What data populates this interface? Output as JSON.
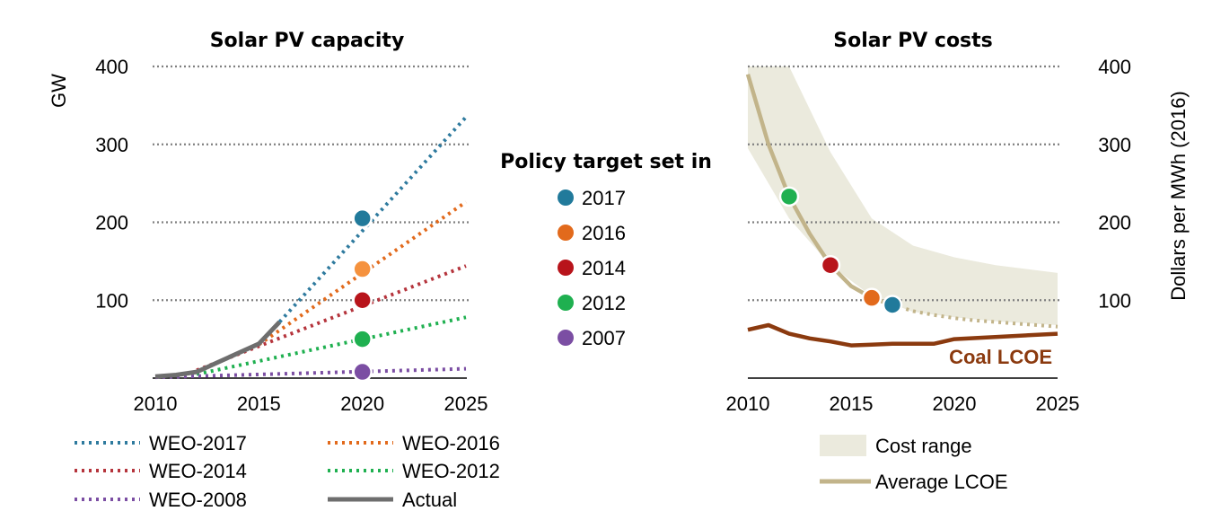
{
  "chart_data": [
    {
      "type": "line",
      "title": "Solar PV capacity",
      "xlabel": "",
      "ylabel": "GW",
      "xlim": [
        2010,
        2025
      ],
      "ylim": [
        0,
        400
      ],
      "x_ticks": [
        "2010",
        "2015",
        "2020",
        "2025"
      ],
      "y_ticks": [
        "100",
        "200",
        "300",
        "400"
      ],
      "grid": true,
      "legend_placement": "bottom",
      "series": [
        {
          "name": "WEO-2017",
          "color": "#2e7a9e",
          "style": "dotted",
          "x": [
            2016,
            2025
          ],
          "y": [
            72,
            335
          ]
        },
        {
          "name": "WEO-2016",
          "color": "#e26a1c",
          "style": "dotted",
          "x": [
            2015,
            2025
          ],
          "y": [
            43,
            226
          ]
        },
        {
          "name": "WEO-2014",
          "color": "#b5343c",
          "style": "dotted",
          "x": [
            2012,
            2025
          ],
          "y": [
            10,
            144
          ]
        },
        {
          "name": "WEO-2012",
          "color": "#1fb050",
          "style": "dotted",
          "x": [
            2012,
            2025
          ],
          "y": [
            5,
            78
          ]
        },
        {
          "name": "WEO-2008",
          "color": "#7b4ea3",
          "style": "dotted",
          "x": [
            2010,
            2025
          ],
          "y": [
            1,
            12
          ]
        },
        {
          "name": "Actual",
          "color": "#6e6e6e",
          "style": "solid",
          "x": [
            2010,
            2011,
            2012,
            2013,
            2014,
            2015,
            2016
          ],
          "y": [
            2,
            4,
            8,
            20,
            32,
            44,
            72
          ]
        }
      ],
      "policy_targets": [
        {
          "year_set": "2017",
          "x": 2020,
          "y": 205,
          "color": "#217a9b"
        },
        {
          "year_set": "2016",
          "x": 2020,
          "y": 140,
          "color": "#f5923e"
        },
        {
          "year_set": "2014",
          "x": 2020,
          "y": 100,
          "color": "#b8141b"
        },
        {
          "year_set": "2012",
          "x": 2020,
          "y": 50,
          "color": "#1fb050"
        },
        {
          "year_set": "2007",
          "x": 2020,
          "y": 8,
          "color": "#7b4ea3"
        }
      ]
    },
    {
      "type": "line",
      "title": "Solar PV costs",
      "xlabel": "",
      "ylabel": "Dollars per MWh (2016)",
      "xlim": [
        2010,
        2025
      ],
      "ylim": [
        0,
        400
      ],
      "x_ticks": [
        "2010",
        "2015",
        "2020",
        "2025"
      ],
      "y_ticks": [
        "100",
        "200",
        "300",
        "400"
      ],
      "grid": true,
      "y_axis_side": "right",
      "legend_placement": "bottom",
      "cost_range": {
        "name": "Cost range",
        "color": "#ebeadd",
        "x": [
          2010,
          2012,
          2014,
          2016,
          2018,
          2020,
          2022,
          2025
        ],
        "y_low": [
          295,
          205,
          145,
          105,
          85,
          78,
          73,
          68
        ],
        "y_high": [
          400,
          400,
          290,
          205,
          170,
          155,
          145,
          135
        ]
      },
      "series": [
        {
          "name": "Average LCOE",
          "color": "#c2b48a",
          "style": "solid",
          "x": [
            2010,
            2011,
            2012,
            2013,
            2014,
            2015,
            2016,
            2017
          ],
          "y": [
            390,
            300,
            233,
            185,
            145,
            118,
            103,
            94
          ]
        },
        {
          "name": "Average LCOE",
          "color": "#c2b48a",
          "style": "dotted",
          "x": [
            2017,
            2018,
            2019,
            2020,
            2021,
            2022,
            2023,
            2024,
            2025
          ],
          "y": [
            94,
            86,
            81,
            77,
            74,
            72,
            70,
            68,
            66
          ]
        },
        {
          "name": "Coal LCOE",
          "color": "#8b3a0f",
          "style": "solid",
          "x": [
            2010,
            2011,
            2012,
            2013,
            2014,
            2015,
            2016,
            2017,
            2018,
            2019,
            2020,
            2025
          ],
          "y": [
            62,
            68,
            57,
            51,
            47,
            42,
            43,
            44,
            44,
            44,
            50,
            57
          ]
        }
      ],
      "policy_targets": [
        {
          "year_set": "2017",
          "x": 2017,
          "y": 94,
          "color": "#217a9b"
        },
        {
          "year_set": "2016",
          "x": 2016,
          "y": 103,
          "color": "#e26a1c"
        },
        {
          "year_set": "2014",
          "x": 2014,
          "y": 145,
          "color": "#b8141b"
        },
        {
          "year_set": "2012",
          "x": 2012,
          "y": 233,
          "color": "#1fb050"
        }
      ],
      "annotations": [
        "Coal LCOE"
      ]
    }
  ],
  "policy_legend": {
    "title": "Policy target set in",
    "items": [
      {
        "label": "2017",
        "color": "#217a9b"
      },
      {
        "label": "2016",
        "color": "#e26a1c"
      },
      {
        "label": "2014",
        "color": "#b8141b"
      },
      {
        "label": "2012",
        "color": "#1fb050"
      },
      {
        "label": "2007",
        "color": "#7b4ea3"
      }
    ]
  },
  "left_legend": [
    {
      "label": "WEO-2017",
      "color": "#2e7a9e",
      "style": "dotted"
    },
    {
      "label": "WEO-2016",
      "color": "#e26a1c",
      "style": "dotted"
    },
    {
      "label": "WEO-2014",
      "color": "#b5343c",
      "style": "dotted"
    },
    {
      "label": "WEO-2012",
      "color": "#1fb050",
      "style": "dotted"
    },
    {
      "label": "WEO-2008",
      "color": "#7b4ea3",
      "style": "dotted"
    },
    {
      "label": "Actual",
      "color": "#6e6e6e",
      "style": "solid"
    }
  ],
  "right_legend": [
    {
      "label": "Cost range",
      "color": "#ebeadd",
      "style": "band"
    },
    {
      "label": "Average LCOE",
      "color": "#c2b48a",
      "style": "solid"
    }
  ]
}
